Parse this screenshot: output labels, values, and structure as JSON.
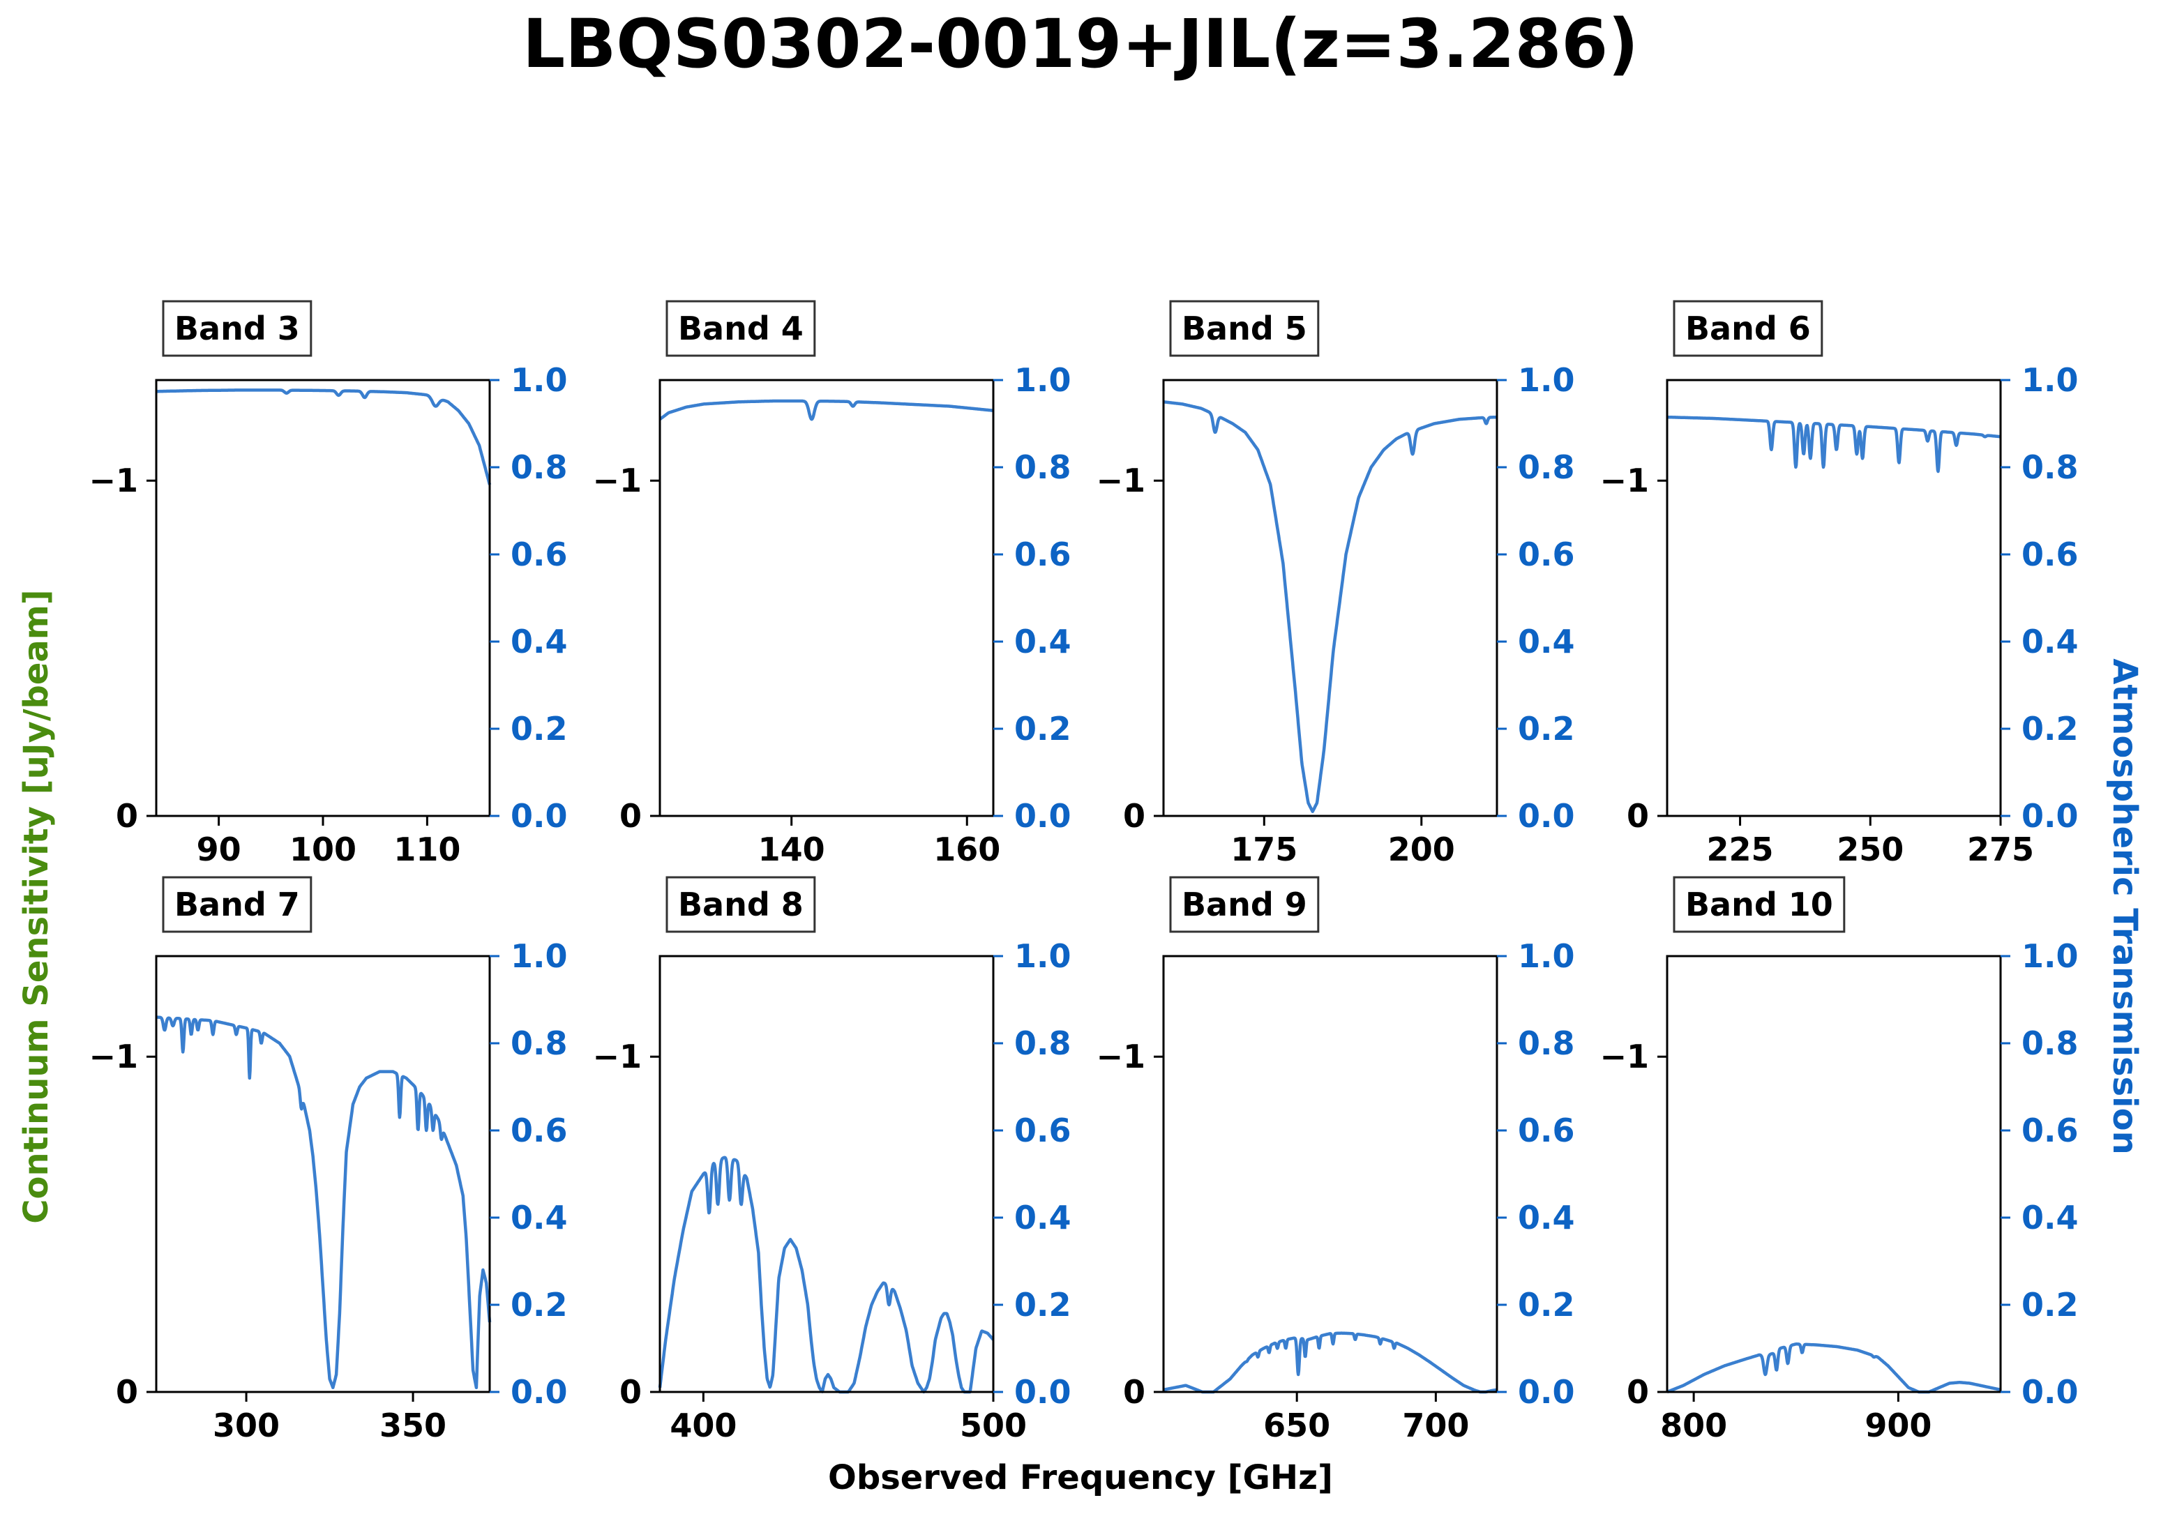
{
  "title": "LBQS0302-0019+JIL(z=3.286)",
  "xlabel": "Observed Frequency [GHz]",
  "ylabel_left": "Continuum Sensitivity [uJy/beam]",
  "ylabel_right": "Atmospheric Transmission",
  "colors": {
    "transmission": "#3a7fcf",
    "left_axis_label": "#4a8c0f",
    "right_axis": "#0d63c4",
    "text": "#000000"
  },
  "chart_data": [
    {
      "type": "line",
      "panel": "Band 3",
      "xlim": [
        84,
        116
      ],
      "xticks": [
        90,
        100,
        110
      ],
      "ylim_left": [
        0,
        -1.3
      ],
      "yticks_left": [
        0,
        -1
      ],
      "ylim_right": [
        0,
        1
      ],
      "yticks_right": [
        "0.0",
        "0.2",
        "0.4",
        "0.6",
        "0.8",
        "1.0"
      ],
      "series": [
        {
          "x": [
            84,
            88,
            92,
            96,
            100,
            103,
            106,
            108,
            110,
            111,
            112,
            113,
            114,
            115,
            116
          ],
          "y": [
            0.974,
            0.976,
            0.977,
            0.977,
            0.976,
            0.975,
            0.973,
            0.971,
            0.966,
            0.96,
            0.95,
            0.93,
            0.9,
            0.85,
            0.76
          ]
        }
      ],
      "dips": [
        [
          96.5,
          0.97,
          0.2
        ],
        [
          101.5,
          0.965,
          0.2
        ],
        [
          104,
          0.96,
          0.2
        ],
        [
          110.8,
          0.94,
          0.3
        ]
      ]
    },
    {
      "type": "line",
      "panel": "Band 4",
      "xlim": [
        125,
        163
      ],
      "xticks": [
        140,
        160
      ],
      "ylim_left": [
        0,
        -1.3
      ],
      "yticks_left": [
        0,
        -1
      ],
      "ylim_right": [
        0,
        1
      ],
      "yticks_right": [
        "0.0",
        "0.2",
        "0.4",
        "0.6",
        "0.8",
        "1.0"
      ],
      "series": [
        {
          "x": [
            125,
            126,
            128,
            130,
            134,
            138,
            142,
            146,
            150,
            154,
            158,
            163
          ],
          "y": [
            0.91,
            0.925,
            0.938,
            0.945,
            0.95,
            0.952,
            0.952,
            0.951,
            0.948,
            0.944,
            0.94,
            0.93
          ]
        }
      ],
      "dips": [
        [
          142.3,
          0.91,
          0.3
        ],
        [
          147,
          0.94,
          0.2
        ]
      ]
    },
    {
      "type": "line",
      "panel": "Band 5",
      "xlim": [
        159,
        212
      ],
      "xticks": [
        175,
        200
      ],
      "ylim_left": [
        0,
        -1.3
      ],
      "yticks_left": [
        0,
        -1
      ],
      "ylim_right": [
        0,
        1
      ],
      "yticks_right": [
        "0.0",
        "0.2",
        "0.4",
        "0.6",
        "0.8",
        "1.0"
      ],
      "series": [
        {
          "x": [
            159,
            162,
            165,
            168,
            170,
            172,
            174,
            176,
            178,
            180,
            181,
            182,
            182.7,
            183.4,
            184.5,
            186,
            188,
            190,
            192,
            194,
            196,
            198,
            200,
            202,
            204,
            206,
            208,
            210,
            212
          ],
          "y": [
            0.95,
            0.945,
            0.935,
            0.915,
            0.9,
            0.88,
            0.84,
            0.76,
            0.58,
            0.28,
            0.12,
            0.03,
            0.01,
            0.03,
            0.15,
            0.38,
            0.6,
            0.73,
            0.8,
            0.84,
            0.865,
            0.88,
            0.89,
            0.9,
            0.905,
            0.91,
            0.912,
            0.914,
            0.915
          ]
        }
      ],
      "dips": [
        [
          167.2,
          0.88,
          0.3
        ],
        [
          198.6,
          0.83,
          0.3
        ],
        [
          210.3,
          0.9,
          0.2
        ]
      ]
    },
    {
      "type": "line",
      "panel": "Band 6",
      "xlim": [
        211,
        275
      ],
      "xticks": [
        225,
        250,
        275
      ],
      "ylim_left": [
        0,
        -1.3
      ],
      "yticks_left": [
        0,
        -1
      ],
      "ylim_right": [
        0,
        1
      ],
      "yticks_right": [
        "0.0",
        "0.2",
        "0.4",
        "0.6",
        "0.8",
        "1.0"
      ],
      "series": [
        {
          "x": [
            211,
            220,
            230,
            240,
            250,
            260,
            270,
            275
          ],
          "y": [
            0.915,
            0.912,
            0.906,
            0.9,
            0.893,
            0.885,
            0.876,
            0.87
          ]
        }
      ],
      "dips": [
        [
          231,
          0.84,
          0.25
        ],
        [
          235.7,
          0.8,
          0.25
        ],
        [
          237.2,
          0.83,
          0.25
        ],
        [
          238.5,
          0.82,
          0.25
        ],
        [
          241,
          0.8,
          0.25
        ],
        [
          243.5,
          0.84,
          0.25
        ],
        [
          247.4,
          0.83,
          0.25
        ],
        [
          248.5,
          0.82,
          0.25
        ],
        [
          255.5,
          0.81,
          0.25
        ],
        [
          261,
          0.86,
          0.25
        ],
        [
          263,
          0.79,
          0.25
        ],
        [
          266.5,
          0.85,
          0.25
        ],
        [
          272,
          0.87,
          0.25
        ]
      ]
    },
    {
      "type": "line",
      "panel": "Band 7",
      "xlim": [
        273,
        373
      ],
      "xticks": [
        300,
        350
      ],
      "ylim_left": [
        0,
        -1.3
      ],
      "yticks_left": [
        0,
        -1
      ],
      "ylim_right": [
        0,
        1
      ],
      "yticks_right": [
        "0.0",
        "0.2",
        "0.4",
        "0.6",
        "0.8",
        "1.0"
      ],
      "series": [
        {
          "x": [
            273,
            280,
            290,
            300,
            305,
            310,
            313,
            315,
            317,
            319,
            320,
            321,
            322,
            323,
            324,
            325,
            326,
            327,
            328,
            329,
            330,
            332,
            334,
            336,
            340,
            344,
            348,
            352,
            355,
            358,
            361,
            363,
            365,
            366,
            367,
            368,
            369,
            370,
            371,
            372,
            373
          ],
          "y": [
            0.86,
            0.857,
            0.852,
            0.835,
            0.825,
            0.8,
            0.77,
            0.72,
            0.67,
            0.6,
            0.54,
            0.46,
            0.36,
            0.24,
            0.12,
            0.03,
            0.01,
            0.04,
            0.18,
            0.38,
            0.55,
            0.66,
            0.7,
            0.72,
            0.735,
            0.735,
            0.72,
            0.69,
            0.66,
            0.62,
            0.56,
            0.52,
            0.45,
            0.35,
            0.2,
            0.05,
            0.01,
            0.22,
            0.28,
            0.25,
            0.16
          ]
        }
      ],
      "dips": [
        [
          275.5,
          0.83,
          0.4
        ],
        [
          278,
          0.84,
          0.4
        ],
        [
          281,
          0.78,
          0.3
        ],
        [
          283.5,
          0.82,
          0.3
        ],
        [
          285.5,
          0.83,
          0.3
        ],
        [
          290,
          0.82,
          0.3
        ],
        [
          297,
          0.82,
          0.3
        ],
        [
          301,
          0.72,
          0.25
        ],
        [
          304.5,
          0.8,
          0.3
        ],
        [
          316.5,
          0.65,
          0.3
        ],
        [
          330,
          0.57,
          0.3
        ],
        [
          346,
          0.63,
          0.3
        ],
        [
          351.5,
          0.6,
          0.3
        ],
        [
          354,
          0.6,
          0.3
        ],
        [
          356,
          0.6,
          0.3
        ],
        [
          358.5,
          0.58,
          0.3
        ]
      ]
    },
    {
      "type": "line",
      "panel": "Band 8",
      "xlim": [
        385,
        500
      ],
      "xticks": [
        400,
        500
      ],
      "ylim_left": [
        0,
        -1.3
      ],
      "yticks_left": [
        0,
        -1
      ],
      "ylim_right": [
        0,
        1
      ],
      "yticks_right": [
        "0.0",
        "0.2",
        "0.4",
        "0.6",
        "0.8",
        "1.0"
      ],
      "series": [
        {
          "x": [
            385,
            387,
            390,
            393,
            396,
            400,
            404,
            408,
            412,
            415,
            417,
            419,
            420,
            421,
            422,
            423,
            424,
            425,
            426,
            428,
            430,
            432,
            434,
            436,
            437,
            438,
            439,
            440,
            441,
            442,
            443,
            444,
            445,
            447,
            450,
            452,
            454,
            456,
            458,
            460,
            462,
            464,
            466,
            468,
            470,
            471,
            472,
            473,
            474,
            475,
            476,
            477,
            478,
            479,
            480,
            482,
            483,
            484,
            485,
            486,
            487,
            488,
            489,
            490,
            492,
            494,
            496,
            498,
            500
          ],
          "y": [
            0.01,
            0.12,
            0.26,
            0.37,
            0.46,
            0.5,
            0.53,
            0.54,
            0.53,
            0.49,
            0.42,
            0.32,
            0.2,
            0.1,
            0.03,
            0.01,
            0.04,
            0.15,
            0.26,
            0.33,
            0.35,
            0.33,
            0.28,
            0.2,
            0.13,
            0.07,
            0.03,
            0.01,
            0.0,
            0.03,
            0.04,
            0.03,
            0.01,
            0.0,
            0.0,
            0.02,
            0.08,
            0.15,
            0.2,
            0.23,
            0.25,
            0.25,
            0.23,
            0.19,
            0.14,
            0.1,
            0.06,
            0.04,
            0.02,
            0.01,
            0.0,
            0.01,
            0.03,
            0.07,
            0.12,
            0.17,
            0.18,
            0.18,
            0.16,
            0.13,
            0.08,
            0.04,
            0.01,
            0.0,
            0.0,
            0.1,
            0.14,
            0.135,
            0.12
          ]
        }
      ],
      "dips": [
        [
          402,
          0.41,
          0.5
        ],
        [
          405,
          0.43,
          0.5
        ],
        [
          409,
          0.44,
          0.5
        ],
        [
          413,
          0.43,
          0.5
        ],
        [
          464,
          0.2,
          0.5
        ],
        [
          488,
          0.13,
          0.4
        ]
      ]
    },
    {
      "type": "line",
      "panel": "Band 9",
      "xlim": [
        602,
        722
      ],
      "xticks": [
        650,
        700
      ],
      "ylim_left": [
        0,
        -1.3
      ],
      "yticks_left": [
        0,
        -1
      ],
      "ylim_right": [
        0,
        1
      ],
      "yticks_right": [
        "0.0",
        "0.2",
        "0.4",
        "0.6",
        "0.8",
        "1.0"
      ],
      "series": [
        {
          "x": [
            602,
            606,
            610,
            612,
            614,
            616,
            618,
            620,
            622,
            624,
            626,
            628,
            630,
            634,
            638,
            642,
            646,
            650,
            654,
            658,
            662,
            666,
            670,
            674,
            678,
            682,
            686,
            690,
            694,
            698,
            702,
            706,
            710,
            714,
            716,
            718,
            720,
            722
          ],
          "y": [
            0.005,
            0.01,
            0.015,
            0.01,
            0.005,
            0.0,
            0.0,
            0.0,
            0.01,
            0.02,
            0.03,
            0.045,
            0.06,
            0.085,
            0.1,
            0.112,
            0.12,
            0.125,
            0.12,
            0.128,
            0.134,
            0.135,
            0.134,
            0.131,
            0.127,
            0.12,
            0.112,
            0.1,
            0.085,
            0.068,
            0.05,
            0.032,
            0.015,
            0.004,
            0.0,
            0.0,
            0.003,
            0.005
          ]
        }
      ],
      "dips": [
        [
          632,
          0.07,
          0.3
        ],
        [
          636,
          0.08,
          0.3
        ],
        [
          640,
          0.09,
          0.3
        ],
        [
          643,
          0.1,
          0.3
        ],
        [
          646,
          0.1,
          0.3
        ],
        [
          650.5,
          0.04,
          0.4
        ],
        [
          653,
          0.08,
          0.3
        ],
        [
          658,
          0.1,
          0.3
        ],
        [
          663,
          0.11,
          0.3
        ],
        [
          671,
          0.12,
          0.3
        ],
        [
          680,
          0.11,
          0.3
        ],
        [
          685,
          0.1,
          0.3
        ]
      ]
    },
    {
      "type": "line",
      "panel": "Band 10",
      "xlim": [
        787,
        950
      ],
      "xticks": [
        800,
        900
      ],
      "ylim_left": [
        0,
        -1.3
      ],
      "yticks_left": [
        0,
        -1
      ],
      "ylim_right": [
        0,
        1
      ],
      "yticks_right": [
        "0.0",
        "0.2",
        "0.4",
        "0.6",
        "0.8",
        "1.0"
      ],
      "series": [
        {
          "x": [
            787,
            795,
            805,
            815,
            825,
            832,
            836,
            840,
            842,
            846,
            850,
            860,
            870,
            880,
            890,
            895,
            900,
            905,
            910,
            915,
            920,
            925,
            930,
            935,
            940,
            945,
            950
          ],
          "y": [
            0.0,
            0.015,
            0.04,
            0.06,
            0.075,
            0.085,
            0.085,
            0.09,
            0.1,
            0.105,
            0.11,
            0.108,
            0.104,
            0.096,
            0.08,
            0.06,
            0.035,
            0.01,
            0.0,
            0.0,
            0.01,
            0.02,
            0.022,
            0.02,
            0.015,
            0.01,
            0.005
          ]
        }
      ],
      "dips": [
        [
          835,
          0.04,
          0.8
        ],
        [
          840.5,
          0.05,
          0.6
        ],
        [
          846,
          0.065,
          0.6
        ],
        [
          853,
          0.09,
          0.5
        ],
        [
          888,
          0.08,
          0.5
        ],
        [
          893,
          0.07,
          0.5
        ]
      ]
    }
  ]
}
